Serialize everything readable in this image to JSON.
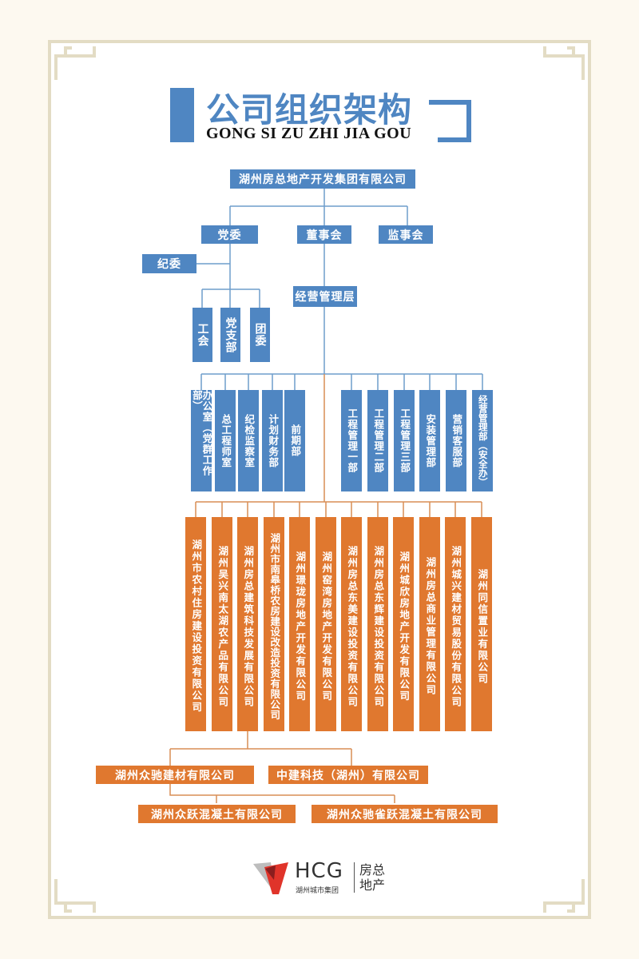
{
  "header": {
    "title": "公司组织架构",
    "subtitle": "GONG SI ZU ZHI JIA GOU"
  },
  "colors": {
    "blue": "#4f86c2",
    "orange": "#e0782f",
    "frame": "#e3dcc4",
    "background": "#fdf9f0"
  },
  "top": {
    "group": "湖州房总地产开发集团有限公司"
  },
  "governance": {
    "party_committee": "党委",
    "board": "董事会",
    "supervisory": "监事会",
    "discipline": "纪委",
    "management": "经营管理层"
  },
  "party_units": [
    "工会",
    "党支部",
    "团委"
  ],
  "departments": [
    "办公室（党群工作部）",
    "总工程师室",
    "纪检监察室",
    "计划财务部",
    "前期部",
    "工程管理一部",
    "工程管理二部",
    "工程管理三部",
    "安装管理部",
    "营销客服部",
    "经营管理部（安全办）"
  ],
  "subsidiaries": [
    "湖州市农村住房建设投资有限公司",
    "湖州吴兴南太湖农产品有限公司",
    "湖州房总建筑科技发展有限公司",
    "湖州市南皋桥农房建设改造投资有限公司",
    "湖州璟珑房地产开发有限公司",
    "湖州窑湾房地产开发有限公司",
    "湖州房总东美建设投资有限公司",
    "湖州房总东辉建设投资有限公司",
    "湖州城欣房地产开发有限公司",
    "湖州房总商业管理有限公司",
    "湖州城兴建材贸易股份有限公司",
    "湖州同信置业有限公司"
  ],
  "second_level": [
    "湖州众驰建材有限公司",
    "中建科技（湖州）有限公司"
  ],
  "third_level": [
    "湖州众跃混凝土有限公司",
    "湖州众驰雀跃混凝土有限公司"
  ],
  "logo": {
    "mark": "HCG",
    "group_name": "湖州城市集团",
    "brand": "房总地产"
  }
}
